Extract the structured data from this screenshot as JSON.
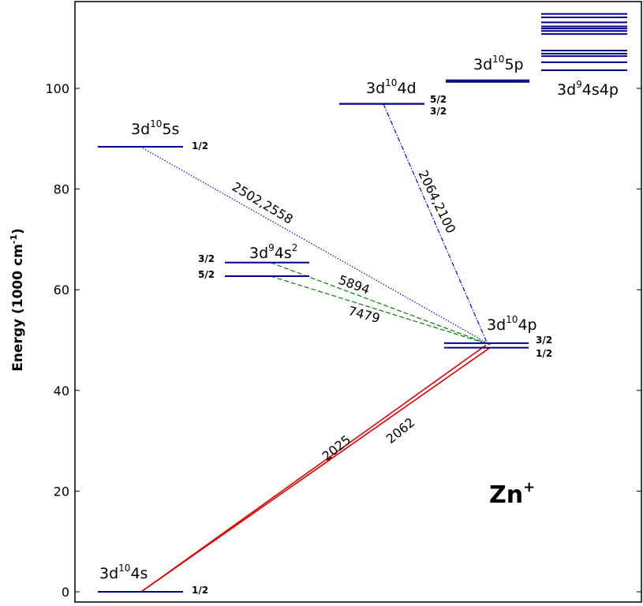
{
  "chart_data": {
    "type": "energy-level-diagram",
    "ylabel": {
      "text": "Energy (1000 cm",
      "sup": "-1",
      "tail": ")"
    },
    "ylim": [
      -2,
      116
    ],
    "yticks": [
      0,
      20,
      40,
      60,
      80,
      100
    ],
    "ion": {
      "base": "Zn",
      "sup": "+"
    },
    "colors": {
      "level": "#00008b",
      "red": "#e00000",
      "blue": "#0000ff",
      "green": "#008000"
    },
    "levels": [
      {
        "id": "4s",
        "energy": 0.0,
        "column": 0
      },
      {
        "id": "5s",
        "energy": 88.4,
        "column": 0
      },
      {
        "id": "4s2_32",
        "energy": 65.4,
        "column": 1
      },
      {
        "id": "4s2_52",
        "energy": 62.7,
        "column": 1
      },
      {
        "id": "4p_32",
        "energy": 49.4,
        "column": 2
      },
      {
        "id": "4p_12",
        "energy": 48.5,
        "column": 2
      },
      {
        "id": "4d_52",
        "energy": 96.9,
        "column": 3
      },
      {
        "id": "4d_32",
        "energy": 96.95,
        "column": 3
      },
      {
        "id": "5p_a",
        "energy": 101.3,
        "column": 4
      },
      {
        "id": "5p_b",
        "energy": 101.6,
        "column": 4
      }
    ],
    "grouped_levels": [
      103.6,
      105.2,
      106.4,
      106.9,
      107.5,
      110.8,
      111.4,
      111.9,
      112.3,
      113.1,
      114.1,
      114.8
    ],
    "config_labels": [
      {
        "id": "cfg-4s",
        "pre": "3d",
        "sup": "10",
        "post": "4s"
      },
      {
        "id": "cfg-5s",
        "pre": "3d",
        "sup": "10",
        "post": "5s"
      },
      {
        "id": "cfg-4s2",
        "pre": "3d",
        "sup": "9",
        "post": "4s",
        "sup2": "2"
      },
      {
        "id": "cfg-4p",
        "pre": "3d",
        "sup": "10",
        "post": "4p"
      },
      {
        "id": "cfg-4d",
        "pre": "3d",
        "sup": "10",
        "post": "4d"
      },
      {
        "id": "cfg-5p",
        "pre": "3d",
        "sup": "10",
        "post": "5p"
      },
      {
        "id": "cfg-4s4p",
        "pre": "3d",
        "sup": "9",
        "post": "4s4p"
      }
    ],
    "j_labels": [
      {
        "id": "j-4s",
        "text": "1/2"
      },
      {
        "id": "j-5s",
        "text": "1/2"
      },
      {
        "id": "j-4s2-32",
        "text": "3/2"
      },
      {
        "id": "j-4s2-52",
        "text": "5/2"
      },
      {
        "id": "j-4p-32",
        "text": "3/2"
      },
      {
        "id": "j-4p-12",
        "text": "1/2"
      },
      {
        "id": "j-4d-52",
        "text": "5/2"
      },
      {
        "id": "j-4d-32",
        "text": "3/2"
      }
    ],
    "transitions": [
      {
        "id": "t2025",
        "label": "2025",
        "style": "red",
        "from": "4s",
        "to": "4p_32"
      },
      {
        "id": "t2062",
        "label": "2062",
        "style": "red",
        "from": "4s",
        "to": "4p_12"
      },
      {
        "id": "t2502",
        "label": "2502,2558",
        "style": "blue",
        "from": "5s",
        "to": "4p_32"
      },
      {
        "id": "t5894",
        "label": "5894",
        "style": "green",
        "from": "4s2_32",
        "to": "4p_32"
      },
      {
        "id": "t7479",
        "label": "7479",
        "style": "green",
        "from": "4s2_52",
        "to": "4p_32"
      },
      {
        "id": "t2064",
        "label": "2064,2100",
        "style": "blue",
        "from": "4d_52",
        "to": "4p_32"
      }
    ]
  }
}
